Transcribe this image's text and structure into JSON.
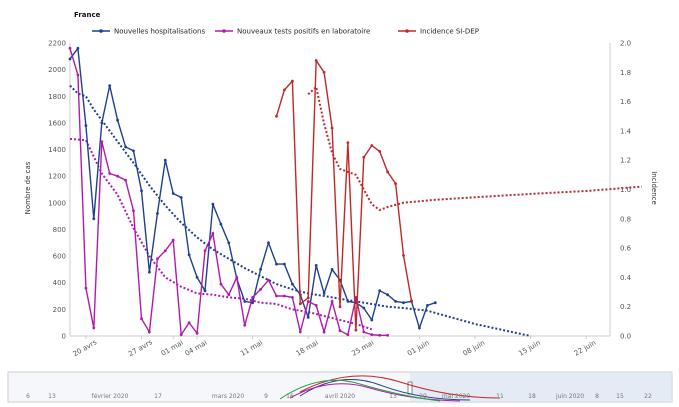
{
  "chart_data": {
    "type": "line",
    "title": "France",
    "ylabel_left": "Nombre de cas",
    "ylabel_right": "Incidence",
    "ylim_left": [
      0,
      2200
    ],
    "ylim_right": [
      0,
      2.0
    ],
    "x_range_days": [
      0,
      46
    ],
    "x_ticks": [
      {
        "day": 2,
        "label": "20 avrs"
      },
      {
        "day": 9,
        "label": "27 avrs"
      },
      {
        "day": 13,
        "label": "01 mai"
      },
      {
        "day": 16,
        "label": "04 mai"
      },
      {
        "day": 23,
        "label": "11 mai"
      },
      {
        "day": 30,
        "label": "18 mai"
      },
      {
        "day": 37,
        "label": "25 mai"
      },
      {
        "day": 44,
        "label": "01 juin"
      },
      {
        "day": 51,
        "label": "08 juin"
      },
      {
        "day": 58,
        "label": "15 juin"
      },
      {
        "day": 65,
        "label": "22 juin"
      }
    ],
    "y_ticks_left": [
      0,
      200,
      400,
      600,
      800,
      1000,
      1200,
      1400,
      1600,
      1800,
      2000,
      2200
    ],
    "y_ticks_right": [
      "0.0",
      "0.2",
      "0.4",
      "0.6",
      "0.8",
      "1.0",
      "1.2",
      "1.4",
      "1.6",
      "1.8",
      "2.0"
    ],
    "series": [
      {
        "name": "Nouvelles hospitalisations",
        "color": "#1f3f8f",
        "axis": "left",
        "x": [
          0,
          1,
          2,
          3,
          4,
          5,
          6,
          7,
          8,
          9,
          10,
          11,
          12,
          13,
          14,
          15,
          16,
          17,
          18,
          19,
          20,
          21,
          22,
          23,
          24,
          25,
          26,
          27,
          28,
          29,
          30,
          31,
          32,
          33,
          34,
          35,
          36,
          37,
          38,
          39,
          40,
          41,
          42,
          43,
          44,
          45,
          46
        ],
        "values": [
          2080,
          2160,
          1580,
          880,
          1600,
          1880,
          1620,
          1420,
          1390,
          1090,
          480,
          920,
          1320,
          1070,
          1040,
          610,
          440,
          340,
          990,
          840,
          700,
          430,
          260,
          250,
          500,
          700,
          540,
          540,
          390,
          310,
          140,
          530,
          320,
          500,
          420,
          260,
          250,
          210,
          120,
          340,
          310,
          260,
          250,
          260,
          60,
          230,
          250
        ]
      },
      {
        "name": "Nouveaux tests positifs en laboratoire",
        "color": "#b01ab0",
        "axis": "left",
        "x": [
          0,
          1,
          2,
          3,
          4,
          5,
          6,
          7,
          8,
          9,
          10,
          11,
          12,
          13,
          14,
          15,
          16,
          17,
          18,
          19,
          20,
          21,
          22,
          23,
          24,
          25,
          26,
          27,
          28,
          29,
          30,
          31,
          32,
          33,
          34,
          35,
          36,
          37,
          38,
          39,
          40
        ],
        "values": [
          2160,
          1960,
          360,
          60,
          1460,
          1220,
          1200,
          1170,
          940,
          130,
          30,
          580,
          640,
          720,
          10,
          100,
          20,
          640,
          770,
          390,
          310,
          440,
          80,
          290,
          350,
          420,
          300,
          300,
          290,
          30,
          260,
          230,
          30,
          260,
          40,
          10,
          290,
          30,
          10,
          5,
          5
        ]
      },
      {
        "name": "Incidence SI-DEP",
        "color": "#c0282a",
        "axis": "right",
        "x": [
          26,
          27,
          28,
          29,
          30,
          31,
          32,
          33,
          34,
          35,
          36,
          37,
          38,
          39,
          40,
          41,
          42,
          43
        ],
        "values": [
          1.5,
          1.68,
          1.74,
          0.22,
          0.26,
          1.88,
          1.8,
          1.42,
          0.2,
          1.32,
          0.04,
          1.22,
          1.3,
          1.26,
          1.12,
          1.04,
          0.55,
          0.24
        ]
      }
    ],
    "trends": [
      {
        "of": "Nouvelles hospitalisations",
        "axis": "left",
        "x": [
          0,
          1,
          2,
          3,
          4,
          6,
          8,
          10,
          12,
          14,
          16,
          18,
          20,
          22,
          24,
          26,
          28,
          30,
          32,
          34,
          36,
          38,
          40,
          42,
          45,
          51,
          58
        ],
        "values": [
          1880,
          1820,
          1800,
          1700,
          1620,
          1460,
          1300,
          1130,
          980,
          850,
          740,
          650,
          580,
          510,
          450,
          390,
          350,
          320,
          300,
          280,
          260,
          240,
          220,
          210,
          190,
          90,
          0
        ]
      },
      {
        "of": "Nouveaux tests positifs en laboratoire",
        "axis": "left",
        "x": [
          0,
          2,
          4,
          6,
          8,
          10,
          12,
          14,
          16,
          18,
          20,
          22,
          24,
          26,
          28,
          30,
          32,
          34,
          36,
          38
        ],
        "values": [
          1480,
          1470,
          1220,
          1060,
          810,
          600,
          440,
          370,
          320,
          310,
          290,
          280,
          250,
          240,
          200,
          180,
          150,
          120,
          90,
          50
        ]
      },
      {
        "of": "Incidence SI-DEP",
        "axis": "right",
        "x": [
          30,
          31,
          32,
          33,
          34,
          35,
          36,
          37,
          38,
          39,
          40,
          42,
          46,
          52,
          58,
          65,
          72
        ],
        "values": [
          1.65,
          1.7,
          1.45,
          1.25,
          1.14,
          1.12,
          1.1,
          1.0,
          0.9,
          0.86,
          0.88,
          0.91,
          0.93,
          0.95,
          0.97,
          0.99,
          1.02
        ]
      }
    ],
    "legend_placement": "top",
    "grid": false
  },
  "navigator": {
    "labels": [
      "6",
      "13",
      "février 2020",
      "17",
      "mars 2020",
      "9",
      "16",
      "avril 2020",
      "13",
      "20",
      "mai 2020",
      "11",
      "18",
      "juin 2020",
      "8",
      "15",
      "22"
    ]
  }
}
